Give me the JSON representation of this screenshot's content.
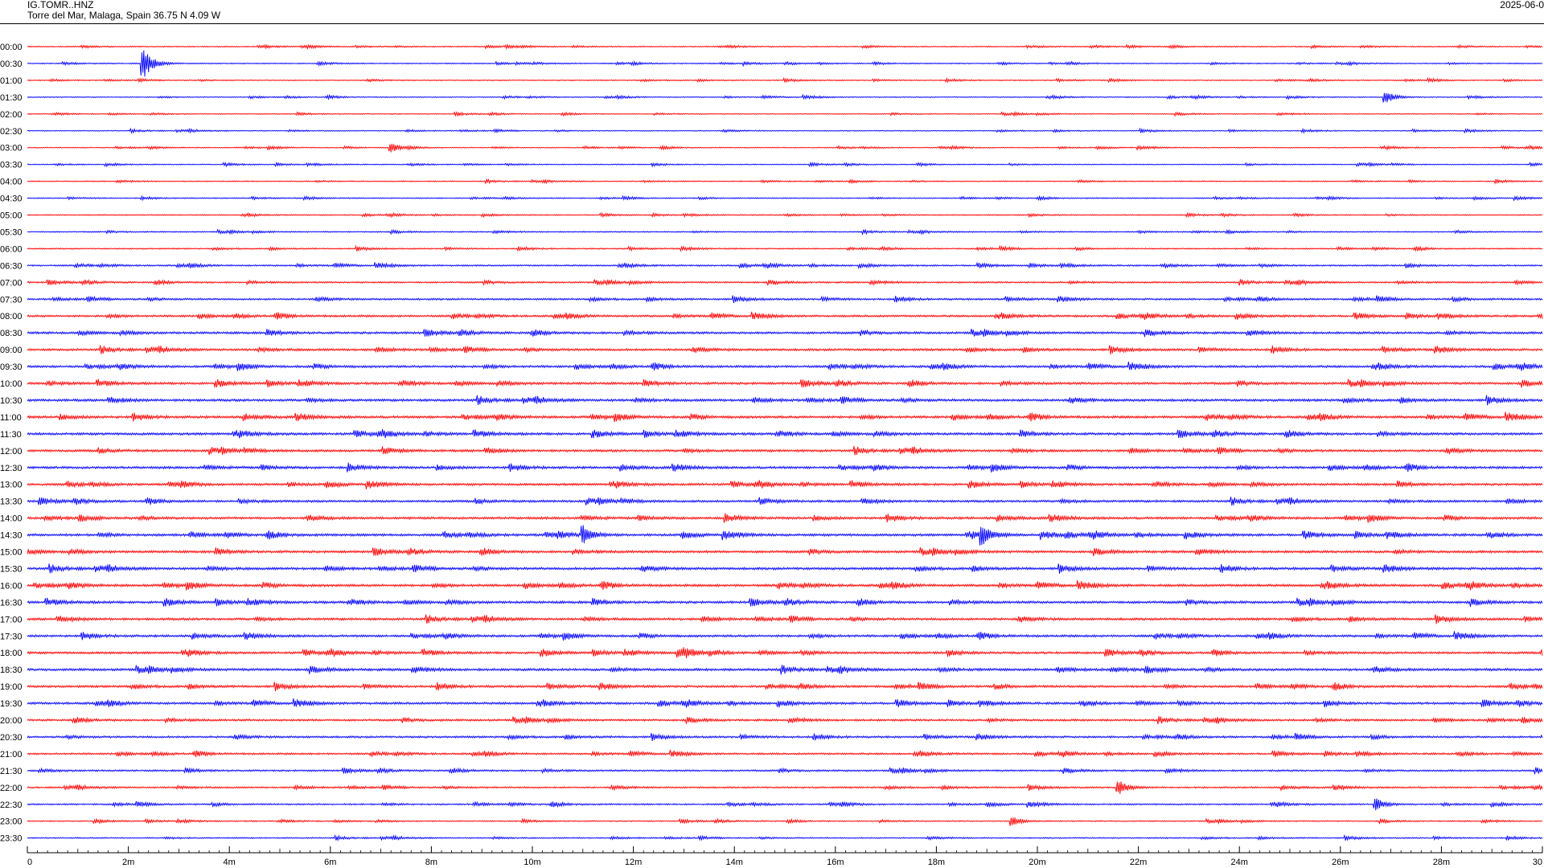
{
  "header": {
    "station_code": "IG.TOMR..HNZ",
    "location": "Torre del Mar, Malaga, Spain  36.75 N 4.09 W",
    "date": "2025-06-0"
  },
  "chart_data": {
    "type": "seismogram-helicorder",
    "title": "IG.TOMR..HNZ",
    "subtitle": "Torre del Mar, Malaga, Spain  36.75 N 4.09 W",
    "date": "2025-06-0",
    "line_duration_minutes": 30,
    "colors": {
      "even_line": "#ff0000",
      "odd_line": "#0000ff",
      "axis": "#000000"
    },
    "row_labels": [
      "00:00",
      "00:30",
      "01:00",
      "01:30",
      "02:00",
      "02:30",
      "03:00",
      "03:30",
      "04:00",
      "04:30",
      "05:00",
      "05:30",
      "06:00",
      "06:30",
      "07:00",
      "07:30",
      "08:00",
      "08:30",
      "09:00",
      "09:30",
      "10:00",
      "10:30",
      "11:00",
      "11:30",
      "12:00",
      "12:30",
      "13:00",
      "13:30",
      "14:00",
      "14:30",
      "15:00",
      "15:30",
      "16:00",
      "16:30",
      "17:00",
      "17:30",
      "18:00",
      "18:30",
      "19:00",
      "19:30",
      "20:00",
      "20:30",
      "21:00",
      "21:30",
      "22:00",
      "22:30",
      "23:00",
      "23:30"
    ],
    "x_ticks": [
      "0",
      "2m",
      "4m",
      "6m",
      "8m",
      "10m",
      "12m",
      "14m",
      "16m",
      "18m",
      "20m",
      "22m",
      "24m",
      "26m",
      "28m",
      "30"
    ],
    "xlim": [
      0,
      30
    ],
    "noise_level": [
      0.5,
      0.5,
      0.5,
      0.5,
      0.5,
      0.5,
      0.5,
      0.5,
      0.5,
      0.5,
      0.5,
      0.55,
      0.6,
      0.75,
      0.8,
      0.9,
      1.0,
      1.1,
      1.1,
      1.1,
      1.15,
      1.2,
      1.2,
      1.2,
      1.15,
      1.15,
      1.1,
      1.1,
      1.15,
      1.2,
      1.2,
      1.2,
      1.2,
      1.2,
      1.15,
      1.1,
      1.1,
      1.2,
      1.1,
      1.1,
      1.0,
      0.95,
      0.9,
      0.85,
      0.8,
      0.75,
      0.6,
      0.6
    ],
    "events": [
      {
        "row": "00:30",
        "minute": 2.3,
        "amplitude": 4.5
      },
      {
        "row": "14:30",
        "minute": 11.0,
        "amplitude": 3.0
      },
      {
        "row": "14:30",
        "minute": 18.9,
        "amplitude": 3.0
      },
      {
        "row": "22:00",
        "minute": 21.6,
        "amplitude": 2.5
      },
      {
        "row": "22:30",
        "minute": 26.7,
        "amplitude": 2.0
      },
      {
        "row": "01:30",
        "minute": 26.9,
        "amplitude": 2.0
      },
      {
        "row": "03:00",
        "minute": 7.2,
        "amplitude": 1.5
      },
      {
        "row": "18:00",
        "minute": 12.9,
        "amplitude": 1.5
      },
      {
        "row": "23:00",
        "minute": 19.5,
        "amplitude": 1.5
      }
    ]
  }
}
